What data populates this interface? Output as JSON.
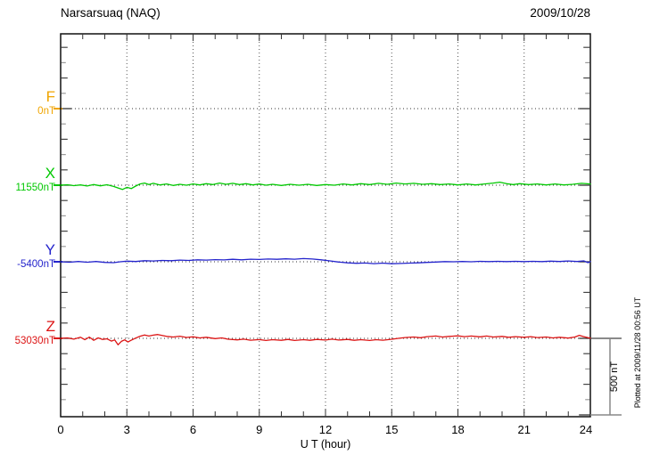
{
  "chart_data": {
    "type": "line",
    "title": "Narsarsuaq (NAQ)",
    "date": "2009/10/28",
    "xlabel": "U T (hour)",
    "x_range": [
      0,
      24
    ],
    "x_ticks": [
      0,
      3,
      6,
      9,
      12,
      15,
      18,
      21,
      24
    ],
    "x_minor_tick_interval_hours": 1,
    "y_minor_tick_nT": 100,
    "grid": "dotted vertical lines every 3 hours; dotted horizontal line at each trace baseline",
    "scale_bar": {
      "label": "500 nT",
      "nT": 500
    },
    "plotted_note": "Plotted at 2009/11/28 00:56 UT",
    "points_unit": "[UT hour, offset in nT from series baseline]",
    "series": [
      {
        "name": "F",
        "baseline_label": "0nT",
        "baseline_nT": 0,
        "color": "#F0A500",
        "note": "no visible trace; flat dotted baseline only",
        "points": []
      },
      {
        "name": "X",
        "baseline_label": "11550nT",
        "baseline_nT": 11550,
        "color": "#00C800",
        "points": [
          [
            0,
            0
          ],
          [
            0.3,
            3
          ],
          [
            0.6,
            -3
          ],
          [
            0.9,
            2
          ],
          [
            1.2,
            -5
          ],
          [
            1.5,
            4
          ],
          [
            1.8,
            -4
          ],
          [
            2.1,
            3
          ],
          [
            2.4,
            -8
          ],
          [
            2.6,
            -18
          ],
          [
            2.8,
            -28
          ],
          [
            3.0,
            -14
          ],
          [
            3.2,
            -22
          ],
          [
            3.4,
            -6
          ],
          [
            3.6,
            8
          ],
          [
            3.8,
            14
          ],
          [
            4.0,
            4
          ],
          [
            4.2,
            12
          ],
          [
            4.5,
            2
          ],
          [
            4.8,
            8
          ],
          [
            5.1,
            -2
          ],
          [
            5.4,
            6
          ],
          [
            5.7,
            0
          ],
          [
            6.0,
            8
          ],
          [
            6.3,
            2
          ],
          [
            6.6,
            10
          ],
          [
            6.9,
            4
          ],
          [
            7.2,
            14
          ],
          [
            7.5,
            6
          ],
          [
            7.8,
            12
          ],
          [
            8.1,
            4
          ],
          [
            8.4,
            10
          ],
          [
            8.7,
            2
          ],
          [
            9.0,
            8
          ],
          [
            9.3,
            0
          ],
          [
            9.6,
            6
          ],
          [
            10.0,
            -2
          ],
          [
            10.4,
            6
          ],
          [
            10.8,
            0
          ],
          [
            11.2,
            6
          ],
          [
            11.6,
            -2
          ],
          [
            12.0,
            4
          ],
          [
            12.4,
            0
          ],
          [
            12.8,
            8
          ],
          [
            13.2,
            2
          ],
          [
            13.6,
            10
          ],
          [
            14.0,
            4
          ],
          [
            14.4,
            12
          ],
          [
            14.8,
            6
          ],
          [
            15.2,
            14
          ],
          [
            15.6,
            8
          ],
          [
            16.0,
            12
          ],
          [
            16.4,
            6
          ],
          [
            16.8,
            10
          ],
          [
            17.2,
            4
          ],
          [
            17.6,
            8
          ],
          [
            18.0,
            2
          ],
          [
            18.4,
            8
          ],
          [
            18.8,
            2
          ],
          [
            19.2,
            8
          ],
          [
            19.6,
            14
          ],
          [
            19.9,
            20
          ],
          [
            20.2,
            10
          ],
          [
            20.5,
            4
          ],
          [
            20.8,
            10
          ],
          [
            21.2,
            4
          ],
          [
            21.6,
            8
          ],
          [
            22.0,
            2
          ],
          [
            22.4,
            8
          ],
          [
            22.8,
            2
          ],
          [
            23.2,
            6
          ],
          [
            23.6,
            12
          ],
          [
            24,
            8
          ]
        ]
      },
      {
        "name": "Y",
        "baseline_label": "-5400nT",
        "baseline_nT": -5400,
        "color": "#2424CC",
        "points": [
          [
            0,
            0
          ],
          [
            0.4,
            -3
          ],
          [
            0.8,
            2
          ],
          [
            1.2,
            -3
          ],
          [
            1.6,
            2
          ],
          [
            2.0,
            -4
          ],
          [
            2.4,
            -6
          ],
          [
            2.7,
            0
          ],
          [
            3.0,
            4
          ],
          [
            3.4,
            2
          ],
          [
            3.8,
            7
          ],
          [
            4.2,
            5
          ],
          [
            4.6,
            9
          ],
          [
            5.0,
            7
          ],
          [
            5.4,
            11
          ],
          [
            5.8,
            9
          ],
          [
            6.2,
            13
          ],
          [
            6.6,
            11
          ],
          [
            7.0,
            14
          ],
          [
            7.4,
            12
          ],
          [
            7.8,
            16
          ],
          [
            8.2,
            13
          ],
          [
            8.6,
            17
          ],
          [
            9.0,
            15
          ],
          [
            9.4,
            18
          ],
          [
            9.8,
            16
          ],
          [
            10.2,
            19
          ],
          [
            10.6,
            17
          ],
          [
            11.0,
            21
          ],
          [
            11.4,
            18
          ],
          [
            11.8,
            13
          ],
          [
            12.2,
            6
          ],
          [
            12.6,
            -2
          ],
          [
            13.0,
            -7
          ],
          [
            13.4,
            -10
          ],
          [
            13.8,
            -8
          ],
          [
            14.2,
            -12
          ],
          [
            14.6,
            -9
          ],
          [
            15.0,
            -13
          ],
          [
            15.4,
            -11
          ],
          [
            15.8,
            -9
          ],
          [
            16.2,
            -7
          ],
          [
            16.6,
            -4
          ],
          [
            17.0,
            -2
          ],
          [
            17.4,
            1
          ],
          [
            17.8,
            0
          ],
          [
            18.2,
            2
          ],
          [
            18.6,
            0
          ],
          [
            19.0,
            3
          ],
          [
            19.4,
            1
          ],
          [
            19.8,
            3
          ],
          [
            20.2,
            1
          ],
          [
            20.6,
            3
          ],
          [
            21.0,
            1
          ],
          [
            21.4,
            3
          ],
          [
            21.8,
            1
          ],
          [
            22.2,
            4
          ],
          [
            22.6,
            2
          ],
          [
            23.0,
            5
          ],
          [
            23.4,
            2
          ],
          [
            23.7,
            6
          ],
          [
            23.9,
            -6
          ],
          [
            24,
            2
          ]
        ]
      },
      {
        "name": "Z",
        "baseline_label": "53030nT",
        "baseline_nT": 53030,
        "color": "#DC1414",
        "points": [
          [
            0,
            0
          ],
          [
            0.3,
            3
          ],
          [
            0.6,
            -5
          ],
          [
            0.9,
            7
          ],
          [
            1.1,
            -9
          ],
          [
            1.3,
            8
          ],
          [
            1.5,
            -13
          ],
          [
            1.7,
            3
          ],
          [
            1.9,
            -7
          ],
          [
            2.1,
            -3
          ],
          [
            2.3,
            -18
          ],
          [
            2.45,
            -10
          ],
          [
            2.6,
            -42
          ],
          [
            2.75,
            -20
          ],
          [
            2.9,
            -10
          ],
          [
            3.05,
            -24
          ],
          [
            3.2,
            -12
          ],
          [
            3.4,
            2
          ],
          [
            3.6,
            14
          ],
          [
            3.8,
            22
          ],
          [
            4.0,
            15
          ],
          [
            4.2,
            21
          ],
          [
            4.4,
            25
          ],
          [
            4.6,
            19
          ],
          [
            4.8,
            13
          ],
          [
            5.1,
            9
          ],
          [
            5.4,
            14
          ],
          [
            5.7,
            6
          ],
          [
            6.0,
            10
          ],
          [
            6.3,
            3
          ],
          [
            6.6,
            7
          ],
          [
            7.0,
            -2
          ],
          [
            7.3,
            3
          ],
          [
            7.6,
            -6
          ],
          [
            8.0,
            -10
          ],
          [
            8.3,
            -5
          ],
          [
            8.6,
            -12
          ],
          [
            9.0,
            -8
          ],
          [
            9.3,
            -14
          ],
          [
            9.6,
            -9
          ],
          [
            10.0,
            -13
          ],
          [
            10.3,
            -7
          ],
          [
            10.6,
            -14
          ],
          [
            11.0,
            -9
          ],
          [
            11.3,
            -13
          ],
          [
            11.6,
            -7
          ],
          [
            12.0,
            -11
          ],
          [
            12.3,
            -5
          ],
          [
            12.6,
            -11
          ],
          [
            13.0,
            -7
          ],
          [
            13.3,
            -13
          ],
          [
            13.6,
            -9
          ],
          [
            14.0,
            -14
          ],
          [
            14.3,
            -9
          ],
          [
            14.6,
            -12
          ],
          [
            15.0,
            -6
          ],
          [
            15.3,
            0
          ],
          [
            15.6,
            5
          ],
          [
            16.0,
            9
          ],
          [
            16.3,
            4
          ],
          [
            16.6,
            11
          ],
          [
            17.0,
            15
          ],
          [
            17.3,
            9
          ],
          [
            17.6,
            13
          ],
          [
            18.0,
            16
          ],
          [
            18.3,
            11
          ],
          [
            18.6,
            15
          ],
          [
            19.0,
            10
          ],
          [
            19.3,
            15
          ],
          [
            19.6,
            9
          ],
          [
            20.0,
            13
          ],
          [
            20.3,
            7
          ],
          [
            20.6,
            11
          ],
          [
            21.0,
            7
          ],
          [
            21.3,
            11
          ],
          [
            21.6,
            5
          ],
          [
            22.0,
            9
          ],
          [
            22.3,
            3
          ],
          [
            22.6,
            7
          ],
          [
            23.0,
            2
          ],
          [
            23.3,
            9
          ],
          [
            23.5,
            20
          ],
          [
            23.7,
            11
          ],
          [
            23.9,
            4
          ],
          [
            24,
            2
          ]
        ]
      }
    ]
  }
}
